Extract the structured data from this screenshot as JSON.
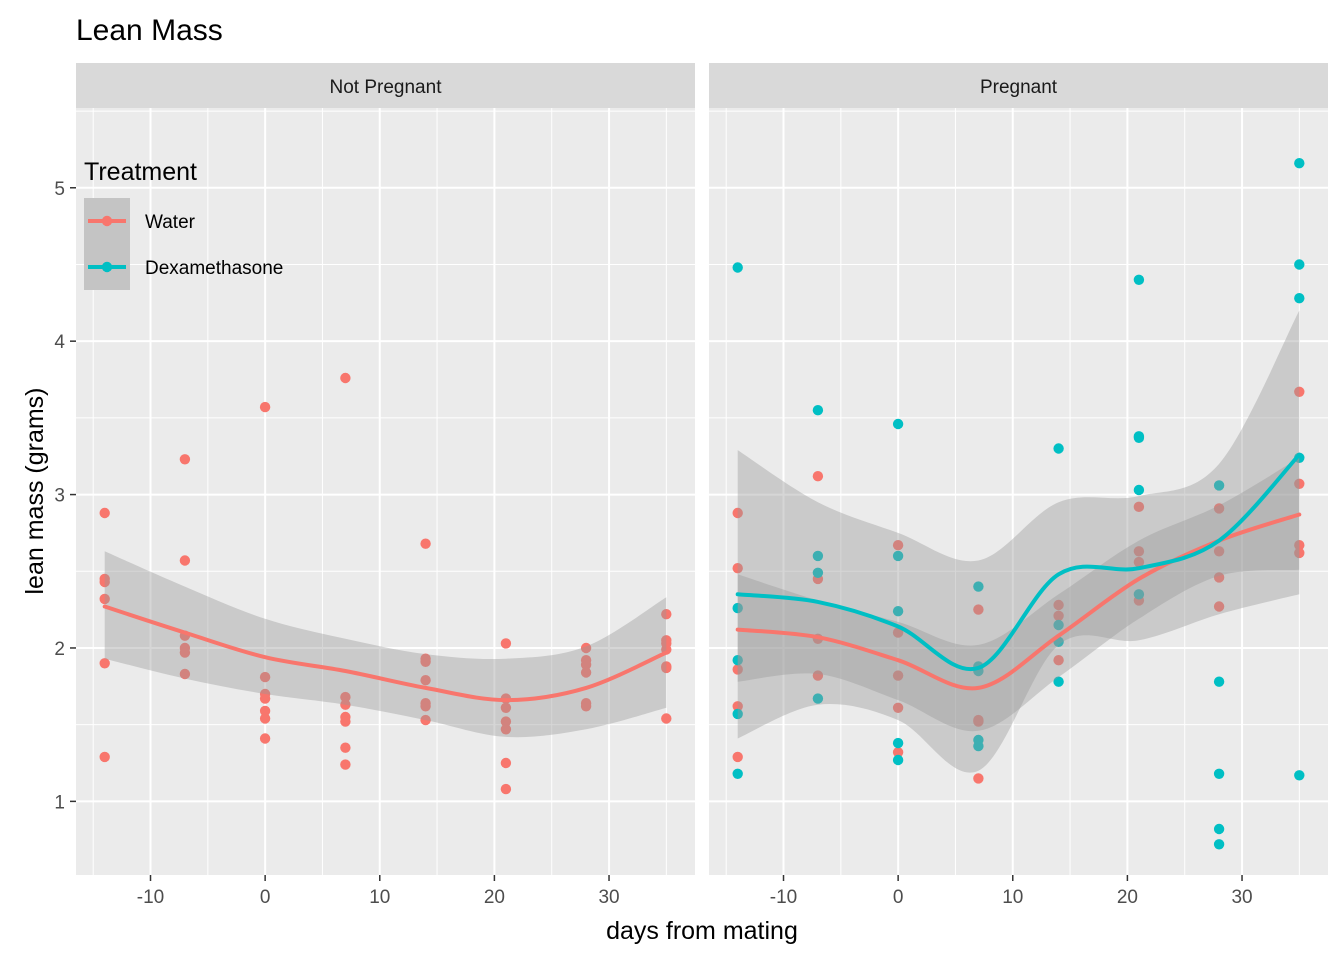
{
  "chart_data": {
    "type": "scatter",
    "title": "Lean Mass",
    "xlabel": "days from mating",
    "ylabel": "lean mass (grams)",
    "xlim": [
      -16.5,
      37.5
    ],
    "ylim": [
      0.52,
      5.52
    ],
    "x_ticks": [
      -10,
      0,
      10,
      20,
      30
    ],
    "y_ticks": [
      1,
      2,
      3,
      4,
      5
    ],
    "grid": true,
    "legend": {
      "title": "Treatment",
      "placement": "top-left",
      "entries": [
        {
          "name": "Water",
          "color": "#F8766D"
        },
        {
          "name": "Dexamethasone",
          "color": "#00BFC4"
        }
      ]
    },
    "panels": [
      {
        "label": "Not Pregnant",
        "series": [
          {
            "name": "Water",
            "color": "#F8766D",
            "points": [
              [
                -14,
                2.88
              ],
              [
                -14,
                2.45
              ],
              [
                -14,
                2.43
              ],
              [
                -14,
                2.32
              ],
              [
                -14,
                1.9
              ],
              [
                -14,
                1.29
              ],
              [
                -7,
                3.23
              ],
              [
                -7,
                2.57
              ],
              [
                -7,
                2.08
              ],
              [
                -7,
                2.0
              ],
              [
                -7,
                1.97
              ],
              [
                -7,
                1.83
              ],
              [
                0,
                3.57
              ],
              [
                0,
                1.81
              ],
              [
                0,
                1.7
              ],
              [
                0,
                1.67
              ],
              [
                0,
                1.59
              ],
              [
                0,
                1.54
              ],
              [
                0,
                1.41
              ],
              [
                7,
                3.76
              ],
              [
                7,
                1.68
              ],
              [
                7,
                1.63
              ],
              [
                7,
                1.55
              ],
              [
                7,
                1.52
              ],
              [
                7,
                1.35
              ],
              [
                7,
                1.24
              ],
              [
                14,
                2.68
              ],
              [
                14,
                1.93
              ],
              [
                14,
                1.91
              ],
              [
                14,
                1.79
              ],
              [
                14,
                1.64
              ],
              [
                14,
                1.62
              ],
              [
                14,
                1.53
              ],
              [
                21,
                2.03
              ],
              [
                21,
                1.67
              ],
              [
                21,
                1.61
              ],
              [
                21,
                1.52
              ],
              [
                21,
                1.47
              ],
              [
                21,
                1.25
              ],
              [
                21,
                1.08
              ],
              [
                28,
                2.0
              ],
              [
                28,
                1.92
              ],
              [
                28,
                1.89
              ],
              [
                28,
                1.84
              ],
              [
                28,
                1.64
              ],
              [
                28,
                1.62
              ],
              [
                35,
                2.22
              ],
              [
                35,
                2.05
              ],
              [
                35,
                2.03
              ],
              [
                35,
                1.99
              ],
              [
                35,
                1.88
              ],
              [
                35,
                1.87
              ],
              [
                35,
                1.54
              ]
            ],
            "smooth": {
              "x": [
                -14,
                -7,
                0,
                7,
                14,
                21,
                28,
                35
              ],
              "y": [
                2.27,
                2.1,
                1.94,
                1.85,
                1.74,
                1.66,
                1.74,
                1.97
              ],
              "lo": [
                1.93,
                1.8,
                1.7,
                1.63,
                1.53,
                1.42,
                1.47,
                1.61
              ],
              "hi": [
                2.63,
                2.4,
                2.19,
                2.06,
                1.96,
                1.93,
                2.01,
                2.33
              ]
            }
          }
        ]
      },
      {
        "label": "Pregnant",
        "series": [
          {
            "name": "Water",
            "color": "#F8766D",
            "points": [
              [
                -14,
                2.88
              ],
              [
                -14,
                2.52
              ],
              [
                -14,
                1.86
              ],
              [
                -14,
                1.62
              ],
              [
                -14,
                1.29
              ],
              [
                -7,
                3.12
              ],
              [
                -7,
                2.45
              ],
              [
                -7,
                2.06
              ],
              [
                -7,
                1.82
              ],
              [
                0,
                2.67
              ],
              [
                0,
                2.1
              ],
              [
                0,
                1.82
              ],
              [
                0,
                1.61
              ],
              [
                0,
                1.32
              ],
              [
                7,
                2.25
              ],
              [
                7,
                1.53
              ],
              [
                7,
                1.52
              ],
              [
                7,
                1.15
              ],
              [
                14,
                2.28
              ],
              [
                14,
                2.21
              ],
              [
                14,
                1.92
              ],
              [
                21,
                2.92
              ],
              [
                21,
                2.63
              ],
              [
                21,
                2.56
              ],
              [
                21,
                2.31
              ],
              [
                28,
                2.91
              ],
              [
                28,
                2.63
              ],
              [
                28,
                2.46
              ],
              [
                28,
                2.27
              ],
              [
                35,
                3.67
              ],
              [
                35,
                3.07
              ],
              [
                35,
                2.67
              ],
              [
                35,
                2.62
              ]
            ],
            "smooth": {
              "x": [
                -14,
                -7,
                0,
                7,
                14,
                21,
                28,
                35
              ],
              "y": [
                2.12,
                2.07,
                1.92,
                1.74,
                2.08,
                2.45,
                2.7,
                2.87
              ],
              "lo": [
                1.78,
                1.83,
                1.66,
                1.46,
                1.81,
                2.19,
                2.47,
                2.51
              ],
              "hi": [
                2.48,
                2.31,
                2.17,
                2.02,
                2.35,
                2.7,
                2.93,
                3.24
              ]
            }
          },
          {
            "name": "Dexamethasone",
            "color": "#00BFC4",
            "points": [
              [
                -14,
                4.48
              ],
              [
                -14,
                2.26
              ],
              [
                -14,
                1.92
              ],
              [
                -14,
                1.57
              ],
              [
                -14,
                1.18
              ],
              [
                -7,
                3.55
              ],
              [
                -7,
                2.6
              ],
              [
                -7,
                2.49
              ],
              [
                -7,
                1.67
              ],
              [
                0,
                3.46
              ],
              [
                0,
                2.6
              ],
              [
                0,
                2.24
              ],
              [
                0,
                1.38
              ],
              [
                0,
                1.27
              ],
              [
                7,
                2.4
              ],
              [
                7,
                1.88
              ],
              [
                7,
                1.85
              ],
              [
                7,
                1.4
              ],
              [
                7,
                1.36
              ],
              [
                14,
                3.3
              ],
              [
                14,
                2.15
              ],
              [
                14,
                2.04
              ],
              [
                14,
                1.78
              ],
              [
                21,
                4.4
              ],
              [
                21,
                3.38
              ],
              [
                21,
                3.37
              ],
              [
                21,
                3.03
              ],
              [
                21,
                2.35
              ],
              [
                28,
                3.06
              ],
              [
                28,
                1.78
              ],
              [
                28,
                1.18
              ],
              [
                28,
                0.82
              ],
              [
                28,
                0.72
              ],
              [
                35,
                5.16
              ],
              [
                35,
                4.5
              ],
              [
                35,
                4.28
              ],
              [
                35,
                3.24
              ],
              [
                35,
                1.17
              ]
            ],
            "smooth": {
              "x": [
                -14,
                -7,
                0,
                7,
                14,
                21,
                28,
                35
              ],
              "y": [
                2.35,
                2.3,
                2.14,
                1.87,
                2.48,
                2.52,
                2.7,
                3.26
              ],
              "lo": [
                1.41,
                1.63,
                1.53,
                1.2,
                2.02,
                2.05,
                2.22,
                2.35
              ],
              "hi": [
                3.29,
                2.95,
                2.75,
                2.57,
                2.95,
                2.99,
                3.2,
                4.2
              ]
            }
          }
        ]
      }
    ]
  }
}
